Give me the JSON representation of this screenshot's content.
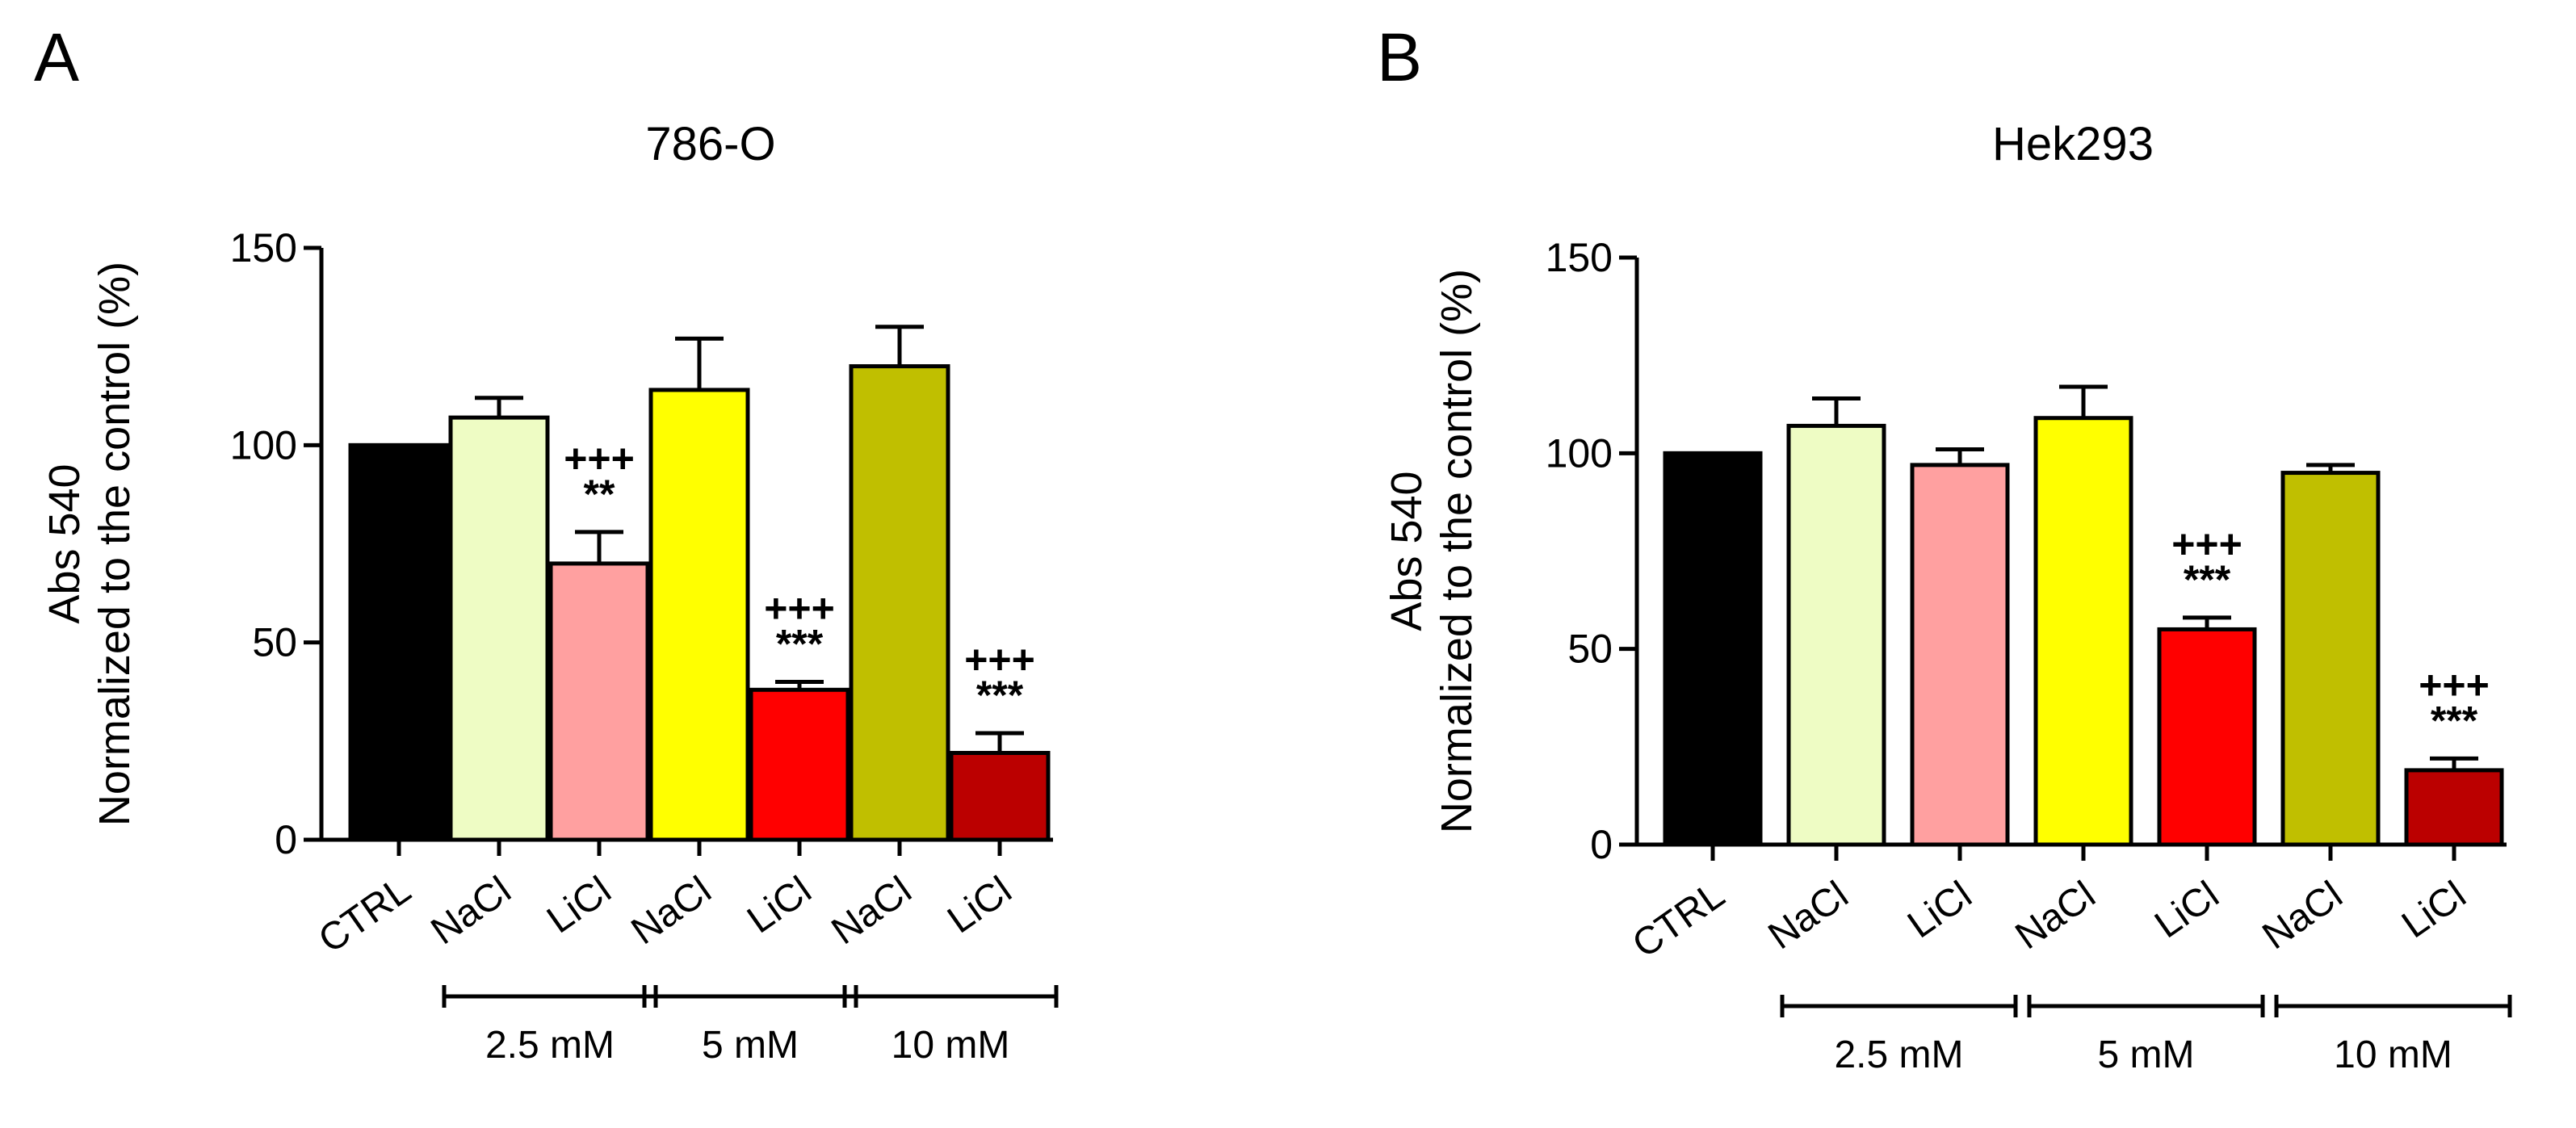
{
  "chart_data": [
    {
      "type": "bar",
      "panel": "A",
      "title": "786-O",
      "ylabel_line1": "Abs 540",
      "ylabel_line2": "Normalized to the control (%)",
      "xlabel": "",
      "ylim": [
        0,
        150
      ],
      "yticks": [
        0,
        50,
        100,
        150
      ],
      "grid": false,
      "categories": [
        "CTRL",
        "NaCl",
        "LiCl",
        "NaCl",
        "LiCl",
        "NaCl",
        "LiCl"
      ],
      "values": [
        100,
        107,
        70,
        114,
        38,
        120,
        22
      ],
      "errors": [
        0,
        5,
        8,
        13,
        2,
        10,
        5
      ],
      "colors": [
        "#000000",
        "#eefcc4",
        "#ffa0a0",
        "#ffff00",
        "#ff0000",
        "#c0bf00",
        "#bb0000"
      ],
      "significance": [
        [],
        [],
        [
          "+++",
          "**"
        ],
        [],
        [
          "+++",
          "***"
        ],
        [],
        [
          "+++",
          "***"
        ]
      ],
      "groups": [
        {
          "label": "2.5 mM",
          "start": 1,
          "end": 2
        },
        {
          "label": "5 mM",
          "start": 3,
          "end": 4
        },
        {
          "label": "10 mM",
          "start": 5,
          "end": 6
        }
      ]
    },
    {
      "type": "bar",
      "panel": "B",
      "title": "Hek293",
      "ylabel_line1": "Abs 540",
      "ylabel_line2": "Normalized to the control (%)",
      "xlabel": "",
      "ylim": [
        0,
        150
      ],
      "yticks": [
        0,
        50,
        100,
        150
      ],
      "grid": false,
      "categories": [
        "CTRL",
        "NaCl",
        "LiCl",
        "NaCl",
        "LiCl",
        "NaCl",
        "LiCl"
      ],
      "values": [
        100,
        107,
        97,
        109,
        55,
        95,
        19
      ],
      "errors": [
        0,
        7,
        4,
        8,
        3,
        2,
        3
      ],
      "colors": [
        "#000000",
        "#eefcc4",
        "#ffa0a0",
        "#ffff00",
        "#ff0000",
        "#c0bf00",
        "#bb0000"
      ],
      "significance": [
        [],
        [],
        [],
        [],
        [
          "+++",
          "***"
        ],
        [],
        [
          "+++",
          "***"
        ]
      ],
      "groups": [
        {
          "label": "2.5 mM",
          "start": 1,
          "end": 2
        },
        {
          "label": "5 mM",
          "start": 3,
          "end": 4
        },
        {
          "label": "10 mM",
          "start": 5,
          "end": 6
        }
      ]
    }
  ]
}
